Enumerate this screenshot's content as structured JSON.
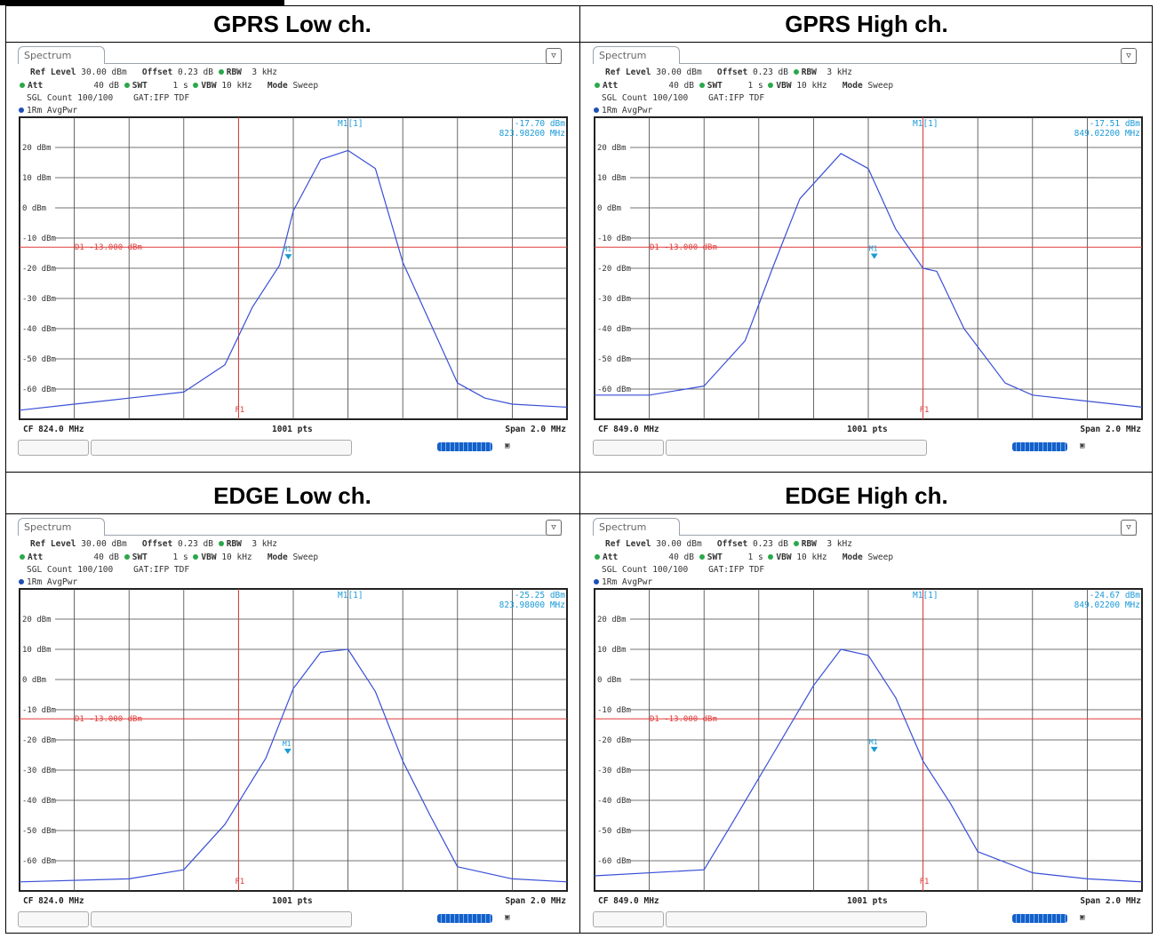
{
  "panels": [
    {
      "heading": "GPRS Low ch.",
      "tab": "Spectrum",
      "settings": {
        "ref_level_label": "Ref Level",
        "ref_level": "30.00 dBm",
        "offset_label": "Offset",
        "offset": "0.23 dB",
        "rbw_label": "RBW",
        "rbw": "3 kHz",
        "att_label": "Att",
        "att": "40 dB",
        "swt_label": "SWT",
        "swt": "1 s",
        "vbw_label": "VBW",
        "vbw": "10 kHz",
        "mode_label": "Mode",
        "mode": "Sweep",
        "sgl_count": "SGL Count 100/100",
        "gat": "GAT:IFP TDF"
      },
      "trace_label": "1Rm AvgPwr",
      "marker_label": "M1[1]",
      "marker_value": "-17.70 dBm",
      "marker_freq": "823.98200 MHz",
      "footer_cf": "CF 824.0 MHz",
      "footer_pts": "1001 pts",
      "footer_span": "Span 2.0 MHz"
    },
    {
      "heading": "GPRS High ch.",
      "tab": "Spectrum",
      "settings": {
        "ref_level_label": "Ref Level",
        "ref_level": "30.00 dBm",
        "offset_label": "Offset",
        "offset": "0.23 dB",
        "rbw_label": "RBW",
        "rbw": "3 kHz",
        "att_label": "Att",
        "att": "40 dB",
        "swt_label": "SWT",
        "swt": "1 s",
        "vbw_label": "VBW",
        "vbw": "10 kHz",
        "mode_label": "Mode",
        "mode": "Sweep",
        "sgl_count": "SGL Count 100/100",
        "gat": "GAT:IFP TDF"
      },
      "trace_label": "1Rm AvgPwr",
      "marker_label": "M1[1]",
      "marker_value": "-17.51 dBm",
      "marker_freq": "849.02200 MHz",
      "footer_cf": "CF 849.0 MHz",
      "footer_pts": "1001 pts",
      "footer_span": "Span 2.0 MHz"
    },
    {
      "heading": "EDGE Low ch.",
      "tab": "Spectrum",
      "settings": {
        "ref_level_label": "Ref Level",
        "ref_level": "30.00 dBm",
        "offset_label": "Offset",
        "offset": "0.23 dB",
        "rbw_label": "RBW",
        "rbw": "3 kHz",
        "att_label": "Att",
        "att": "40 dB",
        "swt_label": "SWT",
        "swt": "1 s",
        "vbw_label": "VBW",
        "vbw": "10 kHz",
        "mode_label": "Mode",
        "mode": "Sweep",
        "sgl_count": "SGL Count 100/100",
        "gat": "GAT:IFP TDF"
      },
      "trace_label": "1Rm AvgPwr",
      "marker_label": "M1[1]",
      "marker_value": "-25.25 dBm",
      "marker_freq": "823.98000 MHz",
      "footer_cf": "CF 824.0 MHz",
      "footer_pts": "1001 pts",
      "footer_span": "Span 2.0 MHz"
    },
    {
      "heading": "EDGE High ch.",
      "tab": "Spectrum",
      "settings": {
        "ref_level_label": "Ref Level",
        "ref_level": "30.00 dBm",
        "offset_label": "Offset",
        "offset": "0.23 dB",
        "rbw_label": "RBW",
        "rbw": "3 kHz",
        "att_label": "Att",
        "att": "40 dB",
        "swt_label": "SWT",
        "swt": "1 s",
        "vbw_label": "VBW",
        "vbw": "10 kHz",
        "mode_label": "Mode",
        "mode": "Sweep",
        "sgl_count": "SGL Count 100/100",
        "gat": "GAT:IFP TDF"
      },
      "trace_label": "1Rm AvgPwr",
      "marker_label": "M1[1]",
      "marker_value": "-24.67 dBm",
      "marker_freq": "849.02200 MHz",
      "footer_cf": "CF 849.0 MHz",
      "footer_pts": "1001 pts",
      "footer_span": "Span 2.0 MHz"
    }
  ],
  "chart_data": [
    {
      "type": "line",
      "title": "GPRS Low ch.",
      "x_unit": "MHz",
      "xlim": [
        823.0,
        825.0
      ],
      "ylim": [
        -70,
        30
      ],
      "y_ticks": [
        "20 dBm",
        "10 dBm",
        "0 dBm",
        "-10 dBm",
        "-20 dBm",
        "-30 dBm",
        "-40 dBm",
        "-50 dBm",
        "-60 dBm"
      ],
      "y_tick_values": [
        20,
        10,
        0,
        -10,
        -20,
        -30,
        -40,
        -50,
        -60
      ],
      "limit_line": {
        "label": "D1 -13.000 dBm",
        "value": -13.0
      },
      "frequency_line": {
        "label": "F1",
        "value": 823.8
      },
      "marker": {
        "label": "M1",
        "x": 823.982,
        "y": -17.7
      },
      "series": [
        {
          "x": [
            823.0,
            823.2,
            823.4,
            823.6,
            823.75,
            823.85,
            823.95,
            824.0,
            824.1,
            824.2,
            824.3,
            824.4,
            824.5,
            824.6,
            824.7,
            824.8,
            825.0
          ],
          "y": [
            -67,
            -65,
            -63,
            -61,
            -52,
            -33,
            -19,
            -1,
            16,
            19,
            13,
            -18,
            -38,
            -58,
            -63,
            -65,
            -66
          ]
        }
      ],
      "grid": true
    },
    {
      "type": "line",
      "title": "GPRS High ch.",
      "x_unit": "MHz",
      "xlim": [
        848.0,
        850.0
      ],
      "ylim": [
        -70,
        30
      ],
      "y_ticks": [
        "20 dBm",
        "10 dBm",
        "0 dBm",
        "-10 dBm",
        "-20 dBm",
        "-30 dBm",
        "-40 dBm",
        "-50 dBm",
        "-60 dBm"
      ],
      "y_tick_values": [
        20,
        10,
        0,
        -10,
        -20,
        -30,
        -40,
        -50,
        -60
      ],
      "limit_line": {
        "label": "D1 -13.000 dBm",
        "value": -13.0
      },
      "frequency_line": {
        "label": "F1",
        "value": 849.2
      },
      "marker": {
        "label": "M1",
        "x": 849.022,
        "y": -17.51
      },
      "series": [
        {
          "x": [
            848.0,
            848.2,
            848.4,
            848.55,
            848.65,
            848.75,
            848.9,
            849.0,
            849.1,
            849.2,
            849.25,
            849.35,
            849.5,
            849.6,
            849.8,
            850.0
          ],
          "y": [
            -62,
            -62,
            -59,
            -44,
            -20,
            3,
            18,
            13,
            -7,
            -20,
            -21,
            -40,
            -58,
            -62,
            -64,
            -66
          ]
        }
      ],
      "grid": true
    },
    {
      "type": "line",
      "title": "EDGE Low ch.",
      "x_unit": "MHz",
      "xlim": [
        823.0,
        825.0
      ],
      "ylim": [
        -70,
        30
      ],
      "y_ticks": [
        "20 dBm",
        "10 dBm",
        "0 dBm",
        "-10 dBm",
        "-20 dBm",
        "-30 dBm",
        "-40 dBm",
        "-50 dBm",
        "-60 dBm"
      ],
      "y_tick_values": [
        20,
        10,
        0,
        -10,
        -20,
        -30,
        -40,
        -50,
        -60
      ],
      "limit_line": {
        "label": "D1 -13.000 dBm",
        "value": -13.0
      },
      "frequency_line": {
        "label": "F1",
        "value": 823.8
      },
      "marker": {
        "label": "M1",
        "x": 823.98,
        "y": -25.25
      },
      "series": [
        {
          "x": [
            823.0,
            823.4,
            823.6,
            823.75,
            823.9,
            824.0,
            824.1,
            824.2,
            824.3,
            824.4,
            824.5,
            824.6,
            824.8,
            825.0
          ],
          "y": [
            -67,
            -66,
            -63,
            -48,
            -26,
            -3,
            9,
            10,
            -4,
            -27,
            -45,
            -62,
            -66,
            -67
          ]
        }
      ],
      "grid": true
    },
    {
      "type": "line",
      "title": "EDGE High ch.",
      "x_unit": "MHz",
      "xlim": [
        848.0,
        850.0
      ],
      "ylim": [
        -70,
        30
      ],
      "y_ticks": [
        "20 dBm",
        "10 dBm",
        "0 dBm",
        "-10 dBm",
        "-20 dBm",
        "-30 dBm",
        "-40 dBm",
        "-50 dBm",
        "-60 dBm"
      ],
      "y_tick_values": [
        20,
        10,
        0,
        -10,
        -20,
        -30,
        -40,
        -50,
        -60
      ],
      "limit_line": {
        "label": "D1 -13.000 dBm",
        "value": -13.0
      },
      "frequency_line": {
        "label": "F1",
        "value": 849.2
      },
      "marker": {
        "label": "M1",
        "x": 849.022,
        "y": -24.67
      },
      "series": [
        {
          "x": [
            848.0,
            848.4,
            848.5,
            848.65,
            848.8,
            848.9,
            849.0,
            849.1,
            849.2,
            849.3,
            849.4,
            849.6,
            849.8,
            850.0
          ],
          "y": [
            -65,
            -63,
            -48,
            -25,
            -2,
            10,
            8,
            -6,
            -27,
            -41,
            -57,
            -64,
            -66,
            -67
          ]
        }
      ],
      "grid": true
    }
  ]
}
